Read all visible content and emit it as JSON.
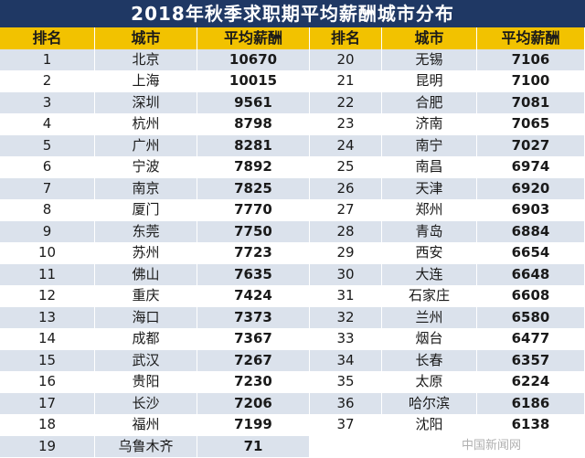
{
  "title": "2018年秋季求职期平均薪酬城市分布",
  "header": {
    "rank": "排名",
    "city": "城市",
    "salary": "平均薪酬"
  },
  "watermark": "中国新闻网",
  "chart_data": {
    "type": "table",
    "title": "2018年秋季求职期平均薪酬城市分布",
    "columns": [
      "排名",
      "城市",
      "平均薪酬"
    ],
    "rows": [
      {
        "rank": "1",
        "city": "北京",
        "salary": "10670"
      },
      {
        "rank": "2",
        "city": "上海",
        "salary": "10015"
      },
      {
        "rank": "3",
        "city": "深圳",
        "salary": "9561"
      },
      {
        "rank": "4",
        "city": "杭州",
        "salary": "8798"
      },
      {
        "rank": "5",
        "city": "广州",
        "salary": "8281"
      },
      {
        "rank": "6",
        "city": "宁波",
        "salary": "7892"
      },
      {
        "rank": "7",
        "city": "南京",
        "salary": "7825"
      },
      {
        "rank": "8",
        "city": "厦门",
        "salary": "7770"
      },
      {
        "rank": "9",
        "city": "东莞",
        "salary": "7750"
      },
      {
        "rank": "10",
        "city": "苏州",
        "salary": "7723"
      },
      {
        "rank": "11",
        "city": "佛山",
        "salary": "7635"
      },
      {
        "rank": "12",
        "city": "重庆",
        "salary": "7424"
      },
      {
        "rank": "13",
        "city": "海口",
        "salary": "7373"
      },
      {
        "rank": "14",
        "city": "成都",
        "salary": "7367"
      },
      {
        "rank": "15",
        "city": "武汉",
        "salary": "7267"
      },
      {
        "rank": "16",
        "city": "贵阳",
        "salary": "7230"
      },
      {
        "rank": "17",
        "city": "长沙",
        "salary": "7206"
      },
      {
        "rank": "18",
        "city": "福州",
        "salary": "7199"
      },
      {
        "rank": "19",
        "city": "乌鲁木齐",
        "salary": "71"
      },
      {
        "rank": "20",
        "city": "无锡",
        "salary": "7106"
      },
      {
        "rank": "21",
        "city": "昆明",
        "salary": "7100"
      },
      {
        "rank": "22",
        "city": "合肥",
        "salary": "7081"
      },
      {
        "rank": "23",
        "city": "济南",
        "salary": "7065"
      },
      {
        "rank": "24",
        "city": "南宁",
        "salary": "7027"
      },
      {
        "rank": "25",
        "city": "南昌",
        "salary": "6974"
      },
      {
        "rank": "26",
        "city": "天津",
        "salary": "6920"
      },
      {
        "rank": "27",
        "city": "郑州",
        "salary": "6903"
      },
      {
        "rank": "28",
        "city": "青岛",
        "salary": "6884"
      },
      {
        "rank": "29",
        "city": "西安",
        "salary": "6654"
      },
      {
        "rank": "30",
        "city": "大连",
        "salary": "6648"
      },
      {
        "rank": "31",
        "city": "石家庄",
        "salary": "6608"
      },
      {
        "rank": "32",
        "city": "兰州",
        "salary": "6580"
      },
      {
        "rank": "33",
        "city": "烟台",
        "salary": "6477"
      },
      {
        "rank": "34",
        "city": "长春",
        "salary": "6357"
      },
      {
        "rank": "35",
        "city": "太原",
        "salary": "6224"
      },
      {
        "rank": "36",
        "city": "哈尔滨",
        "salary": "6186"
      },
      {
        "rank": "37",
        "city": "沈阳",
        "salary": "6138"
      }
    ]
  }
}
